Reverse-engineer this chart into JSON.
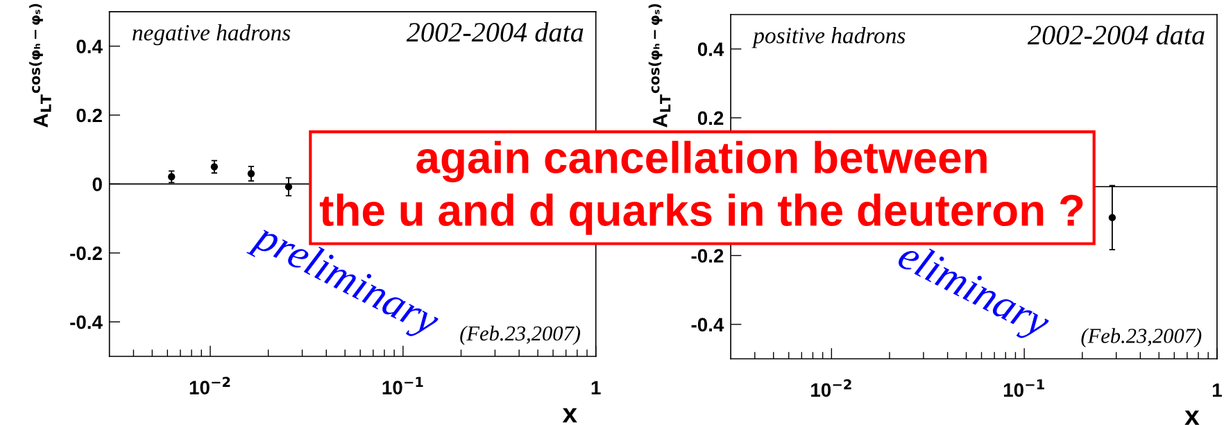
{
  "chart_data": [
    {
      "type": "scatter",
      "xlabel": "x",
      "ylabel": "A$_{LT}$$^{cos(φₕ−φₛ)}$",
      "annotations": [
        "negative hadrons",
        "2002-2004 data",
        "(Feb.23,2007)",
        "preliminary",
        "again cancellation between\nthe u and d quarks in the deuteron ?"
      ],
      "x": [
        0.0063,
        0.0105,
        0.0163,
        0.0255
      ],
      "series": [
        {
          "color": "#000000",
          "values": [
            0.021,
            0.05,
            0.03,
            -0.008
          ],
          "errors": [
            0.017,
            0.018,
            0.021,
            0.026
          ]
        }
      ],
      "log": "x",
      "marker": "circle",
      "xlim": [
        0.003,
        1
      ],
      "ylim": [
        -0.5,
        0.5
      ],
      "xticks": [
        {
          "value": 0.004,
          "label": null
        },
        {
          "value": 0.005,
          "label": null
        },
        {
          "value": 0.006,
          "label": null
        },
        {
          "value": 0.007,
          "label": null
        },
        {
          "value": 0.008,
          "label": null
        },
        {
          "value": 0.009,
          "label": null
        },
        {
          "value": 0.01,
          "label": "10$^{−2}$"
        },
        {
          "value": 0.02,
          "label": null
        },
        {
          "value": 0.03,
          "label": null
        },
        {
          "value": 0.04,
          "label": null
        },
        {
          "value": 0.05,
          "label": null
        },
        {
          "value": 0.06,
          "label": null
        },
        {
          "value": 0.07,
          "label": null
        },
        {
          "value": 0.08,
          "label": null
        },
        {
          "value": 0.09,
          "label": null
        },
        {
          "value": 0.1,
          "label": "10$^{−1}$"
        },
        {
          "value": 0.2,
          "label": null
        },
        {
          "value": 0.3,
          "label": null
        },
        {
          "value": 0.4,
          "label": null
        },
        {
          "value": 0.5,
          "label": null
        },
        {
          "value": 0.6,
          "label": null
        },
        {
          "value": 0.7,
          "label": null
        },
        {
          "value": 0.8,
          "label": null
        },
        {
          "value": 0.9,
          "label": null
        },
        1
      ],
      "yticks": [
        -0.4,
        -0.2,
        0,
        0.2,
        0.4
      ],
      "ref_lines": [
        {
          "axis": "y",
          "value": 0,
          "color": "#000000"
        }
      ]
    },
    {
      "type": "scatter",
      "xlabel": "x",
      "ylabel": "A$_{LT}$$^{cos(φₕ−φₛ)}$",
      "annotations": [
        "positive hadrons",
        "2002-2004 data",
        "(Feb.23,2007)",
        "eliminary"
      ],
      "x": [
        0.286
      ],
      "series": [
        {
          "color": "#000000",
          "values": [
            -0.09
          ],
          "errors": [
            0.093
          ]
        }
      ],
      "log": "x",
      "marker": "circle",
      "xlim": [
        0.003,
        1
      ],
      "ylim": [
        -0.5,
        0.5
      ],
      "xticks": [
        {
          "value": 0.004,
          "label": null
        },
        {
          "value": 0.005,
          "label": null
        },
        {
          "value": 0.006,
          "label": null
        },
        {
          "value": 0.007,
          "label": null
        },
        {
          "value": 0.008,
          "label": null
        },
        {
          "value": 0.009,
          "label": null
        },
        {
          "value": 0.01,
          "label": "10$^{−2}$"
        },
        {
          "value": 0.02,
          "label": null
        },
        {
          "value": 0.03,
          "label": null
        },
        {
          "value": 0.04,
          "label": null
        },
        {
          "value": 0.05,
          "label": null
        },
        {
          "value": 0.06,
          "label": null
        },
        {
          "value": 0.07,
          "label": null
        },
        {
          "value": 0.08,
          "label": null
        },
        {
          "value": 0.09,
          "label": null
        },
        {
          "value": 0.1,
          "label": "10$^{−1}$"
        },
        {
          "value": 0.2,
          "label": null
        },
        {
          "value": 0.3,
          "label": null
        },
        {
          "value": 0.4,
          "label": null
        },
        {
          "value": 0.5,
          "label": null
        },
        {
          "value": 0.6,
          "label": null
        },
        {
          "value": 0.7,
          "label": null
        },
        {
          "value": 0.8,
          "label": null
        },
        {
          "value": 0.9,
          "label": null
        },
        1
      ],
      "yticks": [
        -0.4,
        -0.2,
        0.2,
        0.4
      ],
      "ref_lines": [
        {
          "axis": "y",
          "value": 0,
          "color": "#000000"
        }
      ]
    }
  ]
}
